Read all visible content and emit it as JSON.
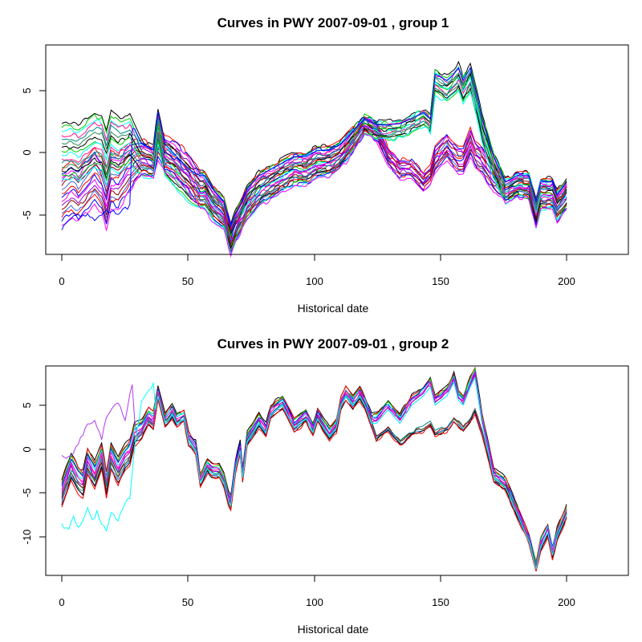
{
  "palette": [
    "#000000",
    "#ff0000",
    "#00cd00",
    "#0000ff",
    "#00ffff",
    "#ff00ff",
    "#ff1493",
    "#9400d3",
    "#008b8b",
    "#8b0000",
    "#2e8b57",
    "#4169e1"
  ],
  "chart_data": [
    {
      "type": "line",
      "title": "Curves in PWY 2007-09-01 , group 1",
      "xlabel": "Historical date",
      "ylabel": "",
      "xlim": [
        1,
        216
      ],
      "ylim": [
        -8,
        8.5
      ],
      "xticks": [
        "0",
        "50",
        "100",
        "150",
        "200"
      ],
      "yticks": [
        "-5",
        "0",
        "5"
      ],
      "grid": false,
      "legend": "none",
      "series_count": 30,
      "anchors": {
        "x": [
          1,
          5,
          8,
          15,
          18,
          20,
          22,
          25,
          30,
          35,
          40,
          42,
          45,
          50,
          55,
          60,
          62,
          65,
          70,
          73,
          75,
          78,
          80,
          85,
          90,
          95,
          100,
          105,
          110,
          115,
          120,
          125,
          130,
          135,
          140,
          145,
          150,
          155,
          158,
          160,
          165,
          168,
          170,
          172,
          175,
          177,
          180,
          185,
          190,
          195,
          200,
          203,
          205,
          210,
          212,
          216
        ],
        "a_top": [
          2.3,
          2.4,
          2.2,
          3.2,
          3.0,
          1.8,
          3.3,
          2.8,
          3.0,
          1.0,
          0.5,
          3.5,
          1.0,
          0.0,
          -1.0,
          -1.5,
          -1.5,
          -2.5,
          -3.5,
          -5.5,
          -4.5,
          -3.5,
          -2.5,
          -1.5,
          -1.0,
          -0.5,
          0.0,
          0.0,
          0.5,
          0.5,
          1.0,
          2.0,
          3.0,
          2.5,
          2.5,
          2.6,
          3.0,
          3.5,
          3.0,
          6.5,
          6.0,
          6.5,
          7.0,
          6.0,
          7.0,
          5.5,
          3.0,
          0.0,
          -2.0,
          -1.5,
          -1.5,
          -3.5,
          -2.0,
          -2.0,
          -3.0,
          -2.0
        ],
        "b_top": [
          -1.2,
          -0.5,
          -1.0,
          0.5,
          -0.3,
          -1.5,
          0.2,
          0.0,
          1.0,
          1.2,
          0.5,
          2.5,
          1.5,
          1.0,
          0.0,
          -1.5,
          -1.5,
          -2.5,
          -3.5,
          -5.5,
          -4.5,
          -3.5,
          -2.5,
          -1.5,
          -1.0,
          -0.5,
          0.0,
          0.0,
          0.5,
          0.5,
          1.0,
          2.0,
          3.0,
          2.5,
          0.5,
          -0.5,
          -0.5,
          -1.5,
          -1.0,
          0.5,
          1.5,
          0.8,
          0.5,
          0.5,
          2.0,
          1.0,
          0.5,
          -1.0,
          -2.0,
          -1.5,
          -1.5,
          -3.5,
          -2.0,
          -2.0,
          -3.0,
          -2.0
        ],
        "spread": [
          4.5,
          4.5,
          4.5,
          4.5,
          4.5,
          4.5,
          4.5,
          4.5,
          4.0,
          3.0,
          2.5,
          3.0,
          3.0,
          3.0,
          3.0,
          3.0,
          3.0,
          2.8,
          2.6,
          2.5,
          2.5,
          2.5,
          2.8,
          2.8,
          2.6,
          2.6,
          2.6,
          2.6,
          2.6,
          2.4,
          2.2,
          2.0,
          1.5,
          1.5,
          1.5,
          1.5,
          1.5,
          1.5,
          1.5,
          2.0,
          2.0,
          2.0,
          2.2,
          2.2,
          2.2,
          2.2,
          2.2,
          2.0,
          2.0,
          2.0,
          2.2,
          2.5,
          2.5,
          2.5,
          2.5,
          2.5
        ]
      },
      "outlier": {
        "x": [
          1,
          5,
          10,
          15,
          20,
          25,
          30,
          31,
          216
        ],
        "y": [
          -6.0,
          -5.2,
          -4.8,
          -5.3,
          -4.5,
          -4.7,
          -4.2,
          2.0,
          2.0
        ]
      }
    },
    {
      "type": "line",
      "title": "Curves in PWY 2007-09-01 , group 2",
      "xlabel": "Historical date",
      "ylabel": "",
      "xlim": [
        1,
        216
      ],
      "ylim": [
        -14,
        9
      ],
      "xticks": [
        "0",
        "50",
        "100",
        "150",
        "200"
      ],
      "yticks": [
        "-10",
        "-5",
        "0",
        "5"
      ],
      "grid": false,
      "legend": "none",
      "series_count": 14,
      "anchors": {
        "x": [
          1,
          3,
          5,
          8,
          10,
          12,
          15,
          18,
          20,
          22,
          25,
          28,
          30,
          32,
          35,
          38,
          40,
          42,
          45,
          48,
          50,
          53,
          55,
          58,
          60,
          63,
          65,
          68,
          70,
          72,
          73,
          75,
          77,
          78,
          80,
          85,
          88,
          90,
          95,
          100,
          105,
          108,
          110,
          115,
          118,
          120,
          122,
          125,
          128,
          130,
          133,
          135,
          140,
          145,
          150,
          155,
          158,
          160,
          165,
          168,
          170,
          172,
          175,
          177,
          180,
          185,
          190,
          195,
          200,
          203,
          205,
          208,
          210,
          212,
          216
        ],
        "a": [
          -5.0,
          -3.5,
          -2.0,
          -3.5,
          -4.0,
          -1.5,
          -3.0,
          -1.0,
          -4.0,
          -1.0,
          -2.5,
          -1.0,
          -0.5,
          1.5,
          2.0,
          3.5,
          3.0,
          6.0,
          3.0,
          4.0,
          3.0,
          3.5,
          1.0,
          0.0,
          -3.5,
          -2.0,
          -2.5,
          -2.5,
          -3.5,
          -5.5,
          -6.0,
          -2.0,
          0.0,
          -3.0,
          1.0,
          3.0,
          2.0,
          4.0,
          5.0,
          2.5,
          3.5,
          2.0,
          3.5,
          1.5,
          2.5,
          5.0,
          6.0,
          5.0,
          6.0,
          5.0,
          3.0,
          3.0,
          4.5,
          3.0,
          5.0,
          6.0,
          7.0,
          5.0,
          6.0,
          7.5,
          5.5,
          5.0,
          7.0,
          8.0,
          3.0,
          -3.0,
          -4.0,
          -7.0,
          -10.0,
          -13.0,
          -10.5,
          -9.0,
          -11.5,
          -9.5,
          -7.0
        ],
        "b": [
          -5.0,
          -3.5,
          -2.0,
          -3.5,
          -4.0,
          -1.5,
          -3.0,
          -1.0,
          -4.0,
          -1.0,
          -2.5,
          -1.0,
          -0.5,
          1.5,
          2.0,
          3.5,
          3.0,
          6.0,
          3.0,
          4.0,
          3.0,
          3.5,
          1.0,
          0.0,
          -3.5,
          -2.0,
          -2.5,
          -2.5,
          -3.5,
          -5.5,
          -6.0,
          -2.0,
          0.0,
          -3.0,
          1.0,
          3.0,
          2.0,
          4.0,
          5.0,
          2.5,
          3.5,
          2.0,
          3.5,
          1.5,
          2.5,
          5.0,
          6.0,
          5.0,
          6.0,
          5.0,
          3.0,
          1.5,
          2.5,
          1.0,
          2.0,
          2.5,
          3.0,
          2.0,
          2.5,
          3.5,
          3.0,
          2.5,
          3.5,
          4.5,
          2.0,
          -3.0,
          -4.0,
          -7.0,
          -10.0,
          -13.0,
          -10.5,
          -9.0,
          -11.5,
          -9.5,
          -7.0
        ],
        "spread": [
          3.0,
          3.0,
          3.0,
          3.0,
          3.0,
          3.0,
          3.0,
          3.0,
          3.0,
          3.0,
          3.0,
          3.0,
          3.0,
          2.5,
          2.0,
          2.0,
          2.0,
          1.5,
          1.5,
          1.5,
          1.5,
          1.5,
          1.5,
          1.5,
          1.5,
          1.5,
          1.5,
          1.5,
          1.5,
          1.5,
          1.5,
          1.5,
          1.5,
          1.5,
          1.5,
          1.5,
          1.5,
          1.5,
          1.5,
          1.5,
          1.5,
          1.5,
          1.5,
          1.5,
          1.5,
          1.5,
          1.5,
          1.5,
          1.5,
          1.5,
          1.5,
          1.5,
          1.5,
          1.5,
          1.5,
          1.5,
          1.5,
          1.5,
          1.5,
          1.5,
          1.5,
          1.5,
          1.5,
          1.5,
          1.5,
          1.5,
          1.5,
          1.5,
          1.0,
          1.0,
          1.5,
          1.5,
          1.5,
          1.5,
          1.5
        ]
      },
      "outliers": [
        {
          "x": [
            1,
            5,
            8,
            12,
            15,
            18,
            20,
            25,
            28,
            30,
            31,
            32,
            216
          ],
          "y": [
            -1.0,
            -1.0,
            0.5,
            2.5,
            3.0,
            1.0,
            3.5,
            5.0,
            3.0,
            6.0,
            7.0,
            3.0,
            -3.0
          ]
        },
        {
          "x": [
            1,
            4,
            6,
            8,
            10,
            12,
            14,
            16,
            18,
            20,
            22,
            25,
            28,
            30,
            32,
            35,
            40,
            216
          ],
          "y": [
            -8.5,
            -9.0,
            -7.5,
            -8.8,
            -8.0,
            -6.5,
            -8.0,
            -7.0,
            -8.5,
            -9.0,
            -7.0,
            -8.0,
            -6.0,
            -5.5,
            0.0,
            5.0,
            7.0,
            -2.5
          ]
        }
      ]
    }
  ]
}
